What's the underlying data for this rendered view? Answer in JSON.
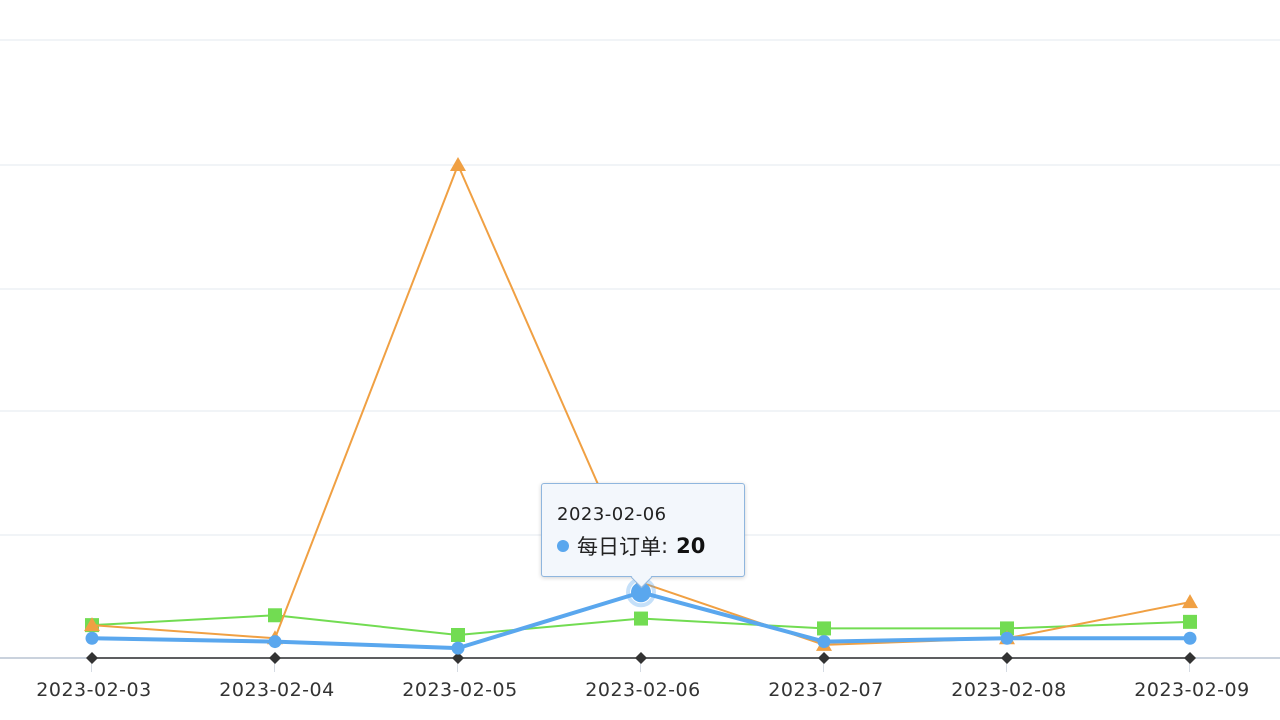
{
  "chart_data": {
    "type": "line",
    "categories": [
      "2023-02-03",
      "2023-02-04",
      "2023-02-05",
      "2023-02-06",
      "2023-02-07",
      "2023-02-08",
      "2023-02-09"
    ],
    "ylim": [
      0,
      150
    ],
    "grid": true,
    "series": [
      {
        "name": "每日订单",
        "color": "#5aa7ee",
        "marker": "circle",
        "values": [
          6,
          5,
          3,
          20,
          5,
          6,
          6
        ]
      },
      {
        "color": "#f0a043",
        "marker": "triangle",
        "values": [
          10,
          6,
          150,
          23,
          4,
          6,
          17
        ]
      },
      {
        "color": "#72dc52",
        "marker": "square",
        "values": [
          10,
          13,
          7,
          12,
          9,
          9,
          11
        ]
      },
      {
        "color": "#333333",
        "marker": "diamond",
        "values": [
          0,
          0,
          0,
          0,
          0,
          0,
          0
        ]
      }
    ]
  },
  "tooltip": {
    "date": "2023-02-06",
    "series_name": "每日订单",
    "separator": ":",
    "value": "20",
    "dot_color": "#5aa7ee"
  }
}
